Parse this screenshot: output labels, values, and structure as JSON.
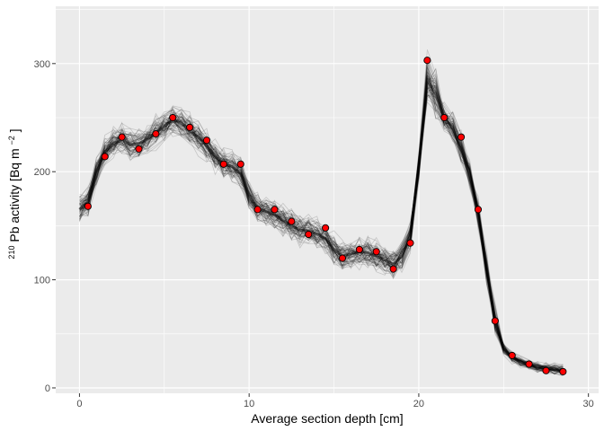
{
  "chart_data": {
    "type": "scatter",
    "xlabel": "Average section depth [cm]",
    "ylabel": {
      "superscript": "210",
      "main": "Pb activity [Bq m",
      "unit_exponent": "−2",
      "close": "]"
    },
    "xlim": [
      -1.4,
      30.6
    ],
    "ylim": [
      -5,
      353
    ],
    "x_ticks": [
      0,
      10,
      20,
      30
    ],
    "y_ticks": [
      0,
      100,
      200,
      300
    ],
    "grid": true,
    "legend": "none",
    "points": [
      {
        "x": 0.5,
        "y": 168
      },
      {
        "x": 1.5,
        "y": 214
      },
      {
        "x": 2.5,
        "y": 232
      },
      {
        "x": 3.5,
        "y": 221
      },
      {
        "x": 4.5,
        "y": 235
      },
      {
        "x": 5.5,
        "y": 250
      },
      {
        "x": 6.5,
        "y": 241
      },
      {
        "x": 7.5,
        "y": 229
      },
      {
        "x": 8.5,
        "y": 207
      },
      {
        "x": 9.5,
        "y": 207
      },
      {
        "x": 10.5,
        "y": 165
      },
      {
        "x": 11.5,
        "y": 165
      },
      {
        "x": 12.5,
        "y": 154
      },
      {
        "x": 13.5,
        "y": 142
      },
      {
        "x": 14.5,
        "y": 148
      },
      {
        "x": 15.5,
        "y": 120
      },
      {
        "x": 16.5,
        "y": 128
      },
      {
        "x": 17.5,
        "y": 126
      },
      {
        "x": 18.5,
        "y": 110
      },
      {
        "x": 19.5,
        "y": 134
      },
      {
        "x": 20.5,
        "y": 303
      },
      {
        "x": 21.5,
        "y": 250
      },
      {
        "x": 22.5,
        "y": 232
      },
      {
        "x": 23.5,
        "y": 165
      },
      {
        "x": 24.5,
        "y": 62
      },
      {
        "x": 25.5,
        "y": 30
      },
      {
        "x": 26.5,
        "y": 22
      },
      {
        "x": 27.5,
        "y": 16
      },
      {
        "x": 28.5,
        "y": 15
      }
    ],
    "model_curve": {
      "x": [
        0.0,
        0.5,
        1.0,
        1.5,
        2.0,
        2.5,
        3.0,
        3.5,
        4.0,
        4.5,
        5.0,
        5.5,
        6.0,
        6.5,
        7.0,
        7.5,
        8.0,
        8.5,
        9.0,
        9.5,
        10.0,
        10.5,
        11.0,
        11.5,
        12.0,
        12.5,
        13.0,
        13.5,
        14.0,
        14.5,
        15.0,
        15.5,
        16.0,
        16.5,
        17.0,
        17.5,
        18.0,
        18.5,
        19.0,
        19.5,
        20.0,
        20.5,
        21.0,
        21.5,
        22.0,
        22.5,
        23.0,
        23.5,
        24.0,
        24.5,
        25.0,
        25.5,
        26.0,
        26.5,
        27.0,
        27.5,
        28.0,
        28.5
      ],
      "y": [
        165,
        172,
        200,
        218,
        226,
        229,
        225,
        226,
        230,
        236,
        242,
        248,
        245,
        238,
        232,
        224,
        214,
        207,
        205,
        198,
        178,
        166,
        163,
        160,
        155,
        150,
        146,
        145,
        142,
        138,
        128,
        122,
        124,
        126,
        125,
        122,
        118,
        114,
        122,
        140,
        205,
        285,
        272,
        250,
        240,
        222,
        198,
        162,
        110,
        62,
        36,
        28,
        24,
        21,
        19,
        18,
        17,
        16
      ]
    },
    "colors": {
      "panel": "#ebebeb",
      "grid": "#ffffff",
      "model_ensemble": "#000000",
      "point_fill": "#ff0000",
      "point_stroke": "#000000"
    }
  }
}
